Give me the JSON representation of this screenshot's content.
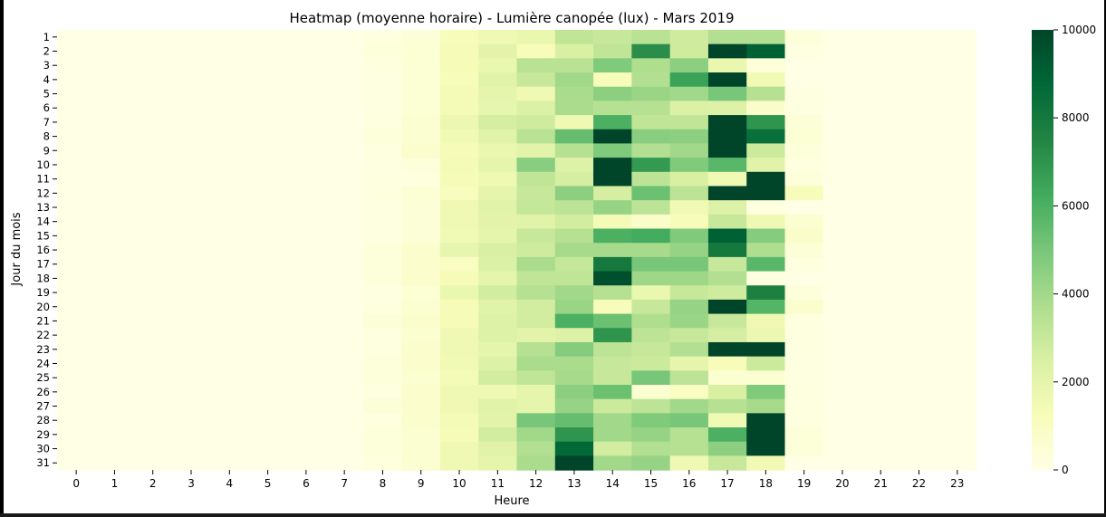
{
  "chart_data": {
    "type": "heatmap",
    "title": "Heatmap (moyenne horaire) - Lumière canopée (lux) - Mars 2019",
    "xlabel": "Heure",
    "ylabel": "Jour du mois",
    "x_categories": [
      "0",
      "1",
      "2",
      "3",
      "4",
      "5",
      "6",
      "7",
      "8",
      "9",
      "10",
      "11",
      "12",
      "13",
      "14",
      "15",
      "16",
      "17",
      "18",
      "19",
      "20",
      "21",
      "22",
      "23"
    ],
    "y_categories": [
      "1",
      "2",
      "3",
      "4",
      "5",
      "6",
      "7",
      "8",
      "9",
      "10",
      "11",
      "12",
      "13",
      "14",
      "15",
      "16",
      "17",
      "18",
      "19",
      "20",
      "21",
      "22",
      "23",
      "24",
      "25",
      "26",
      "27",
      "28",
      "29",
      "30",
      "31"
    ],
    "colormap": "YlGn",
    "vmin": 0,
    "vmax": 10000,
    "colorbar_ticks": [
      "0",
      "2000",
      "4000",
      "6000",
      "8000",
      "10000"
    ],
    "values": [
      [
        0,
        0,
        0,
        0,
        0,
        0,
        0,
        0,
        200,
        400,
        1200,
        1600,
        1800,
        3200,
        3000,
        3400,
        2800,
        3600,
        3600,
        300,
        0,
        0,
        0,
        0
      ],
      [
        0,
        0,
        0,
        0,
        0,
        0,
        0,
        0,
        300,
        500,
        1300,
        2100,
        1200,
        2500,
        3200,
        7200,
        2800,
        10000,
        9000,
        100,
        0,
        0,
        0,
        0
      ],
      [
        0,
        0,
        0,
        0,
        0,
        0,
        0,
        0,
        200,
        500,
        1300,
        1800,
        3400,
        3400,
        4800,
        3700,
        4500,
        1800,
        300,
        0,
        0,
        0,
        0,
        0
      ],
      [
        0,
        0,
        0,
        0,
        0,
        0,
        0,
        0,
        150,
        500,
        1200,
        2200,
        3000,
        4000,
        1200,
        3600,
        6500,
        10000,
        1500,
        0,
        0,
        0,
        0,
        0
      ],
      [
        0,
        0,
        0,
        0,
        0,
        0,
        0,
        0,
        150,
        500,
        1400,
        2000,
        1600,
        3800,
        4500,
        4200,
        4000,
        5000,
        3500,
        100,
        0,
        0,
        0,
        0
      ],
      [
        0,
        0,
        0,
        0,
        0,
        0,
        0,
        0,
        150,
        500,
        1400,
        1900,
        2400,
        3800,
        3500,
        3500,
        2400,
        2300,
        800,
        100,
        0,
        0,
        0,
        0
      ],
      [
        0,
        0,
        0,
        0,
        0,
        0,
        0,
        0,
        200,
        600,
        1700,
        2600,
        2800,
        1600,
        6000,
        3200,
        3200,
        10000,
        7000,
        400,
        0,
        0,
        0,
        0
      ],
      [
        0,
        0,
        0,
        0,
        0,
        0,
        0,
        0,
        300,
        600,
        1500,
        2200,
        3400,
        5400,
        10000,
        4600,
        4500,
        10000,
        8400,
        500,
        0,
        0,
        0,
        0
      ],
      [
        0,
        0,
        0,
        0,
        0,
        0,
        0,
        0,
        200,
        700,
        1300,
        1800,
        2100,
        3500,
        4800,
        3600,
        4000,
        10000,
        2900,
        300,
        0,
        0,
        0,
        0
      ],
      [
        0,
        0,
        0,
        0,
        0,
        0,
        0,
        0,
        100,
        300,
        1400,
        2000,
        4600,
        2300,
        10000,
        6800,
        4800,
        5700,
        2200,
        200,
        0,
        0,
        0,
        0
      ],
      [
        0,
        0,
        0,
        0,
        0,
        0,
        0,
        0,
        150,
        200,
        1300,
        1600,
        3200,
        2600,
        10000,
        3300,
        2500,
        1500,
        10000,
        300,
        0,
        0,
        0,
        0
      ],
      [
        0,
        0,
        0,
        0,
        0,
        0,
        0,
        0,
        200,
        500,
        1100,
        2000,
        3000,
        4500,
        2600,
        5300,
        3300,
        10000,
        10000,
        1200,
        0,
        0,
        0,
        0
      ],
      [
        0,
        0,
        0,
        0,
        0,
        0,
        0,
        0,
        150,
        400,
        1600,
        2200,
        3100,
        3300,
        4300,
        3300,
        1500,
        2300,
        200,
        0,
        0,
        0,
        0,
        0
      ],
      [
        0,
        0,
        0,
        0,
        0,
        0,
        0,
        0,
        150,
        400,
        1600,
        2100,
        2200,
        2700,
        1400,
        800,
        1200,
        3000,
        1600,
        600,
        0,
        0,
        0,
        0
      ],
      [
        0,
        0,
        0,
        0,
        0,
        0,
        0,
        0,
        150,
        400,
        1500,
        2000,
        3000,
        3500,
        6000,
        6200,
        4800,
        9000,
        4700,
        800,
        0,
        0,
        0,
        0
      ],
      [
        0,
        0,
        0,
        0,
        0,
        0,
        0,
        0,
        300,
        700,
        1900,
        2500,
        2800,
        3900,
        3900,
        3900,
        4300,
        8000,
        3700,
        400,
        0,
        0,
        0,
        0
      ],
      [
        0,
        0,
        0,
        0,
        0,
        0,
        0,
        0,
        300,
        700,
        1000,
        2400,
        3800,
        3100,
        8000,
        5000,
        5000,
        3000,
        5700,
        200,
        0,
        0,
        0,
        0
      ],
      [
        0,
        0,
        0,
        0,
        0,
        0,
        0,
        0,
        300,
        700,
        1300,
        2000,
        3200,
        3200,
        9600,
        4100,
        4100,
        3600,
        100,
        0,
        0,
        0,
        0,
        0
      ],
      [
        0,
        0,
        0,
        0,
        0,
        0,
        0,
        0,
        100,
        500,
        1800,
        2700,
        3500,
        4000,
        3500,
        1800,
        3000,
        2800,
        7700,
        300,
        0,
        0,
        0,
        0
      ],
      [
        0,
        0,
        0,
        0,
        0,
        0,
        0,
        0,
        200,
        600,
        1300,
        2200,
        2700,
        4200,
        1200,
        3000,
        4300,
        10000,
        5800,
        700,
        0,
        0,
        0,
        0
      ],
      [
        0,
        0,
        0,
        0,
        0,
        0,
        0,
        0,
        400,
        700,
        1300,
        2300,
        2700,
        6000,
        5300,
        3700,
        4200,
        3000,
        1600,
        200,
        0,
        0,
        0,
        0
      ],
      [
        0,
        0,
        0,
        0,
        0,
        0,
        0,
        0,
        200,
        600,
        1600,
        2300,
        2100,
        2300,
        7000,
        3300,
        3000,
        2600,
        1700,
        200,
        0,
        0,
        0,
        0
      ],
      [
        0,
        0,
        0,
        0,
        0,
        0,
        0,
        0,
        200,
        700,
        1600,
        2000,
        3500,
        4700,
        3300,
        3000,
        3600,
        10000,
        10000,
        100,
        0,
        0,
        0,
        0
      ],
      [
        0,
        0,
        0,
        0,
        0,
        0,
        0,
        0,
        300,
        700,
        1500,
        2300,
        3800,
        3800,
        3000,
        2900,
        2000,
        1200,
        2900,
        100,
        0,
        0,
        0,
        0
      ],
      [
        0,
        0,
        0,
        0,
        0,
        0,
        0,
        0,
        300,
        600,
        1400,
        2700,
        3200,
        3900,
        3000,
        5000,
        3300,
        600,
        600,
        100,
        0,
        0,
        0,
        0
      ],
      [
        0,
        0,
        0,
        0,
        0,
        0,
        0,
        0,
        200,
        700,
        1600,
        1600,
        2000,
        4500,
        5300,
        600,
        1000,
        2500,
        4800,
        200,
        0,
        0,
        0,
        0
      ],
      [
        0,
        0,
        0,
        0,
        0,
        0,
        0,
        0,
        400,
        700,
        1600,
        2200,
        2000,
        4300,
        2900,
        3300,
        4000,
        3500,
        3900,
        200,
        0,
        0,
        0,
        0
      ],
      [
        0,
        0,
        0,
        0,
        0,
        0,
        0,
        0,
        200,
        700,
        1400,
        2100,
        5000,
        5400,
        4000,
        4800,
        5000,
        1500,
        10000,
        200,
        0,
        0,
        0,
        0
      ],
      [
        0,
        0,
        0,
        0,
        0,
        0,
        0,
        0,
        300,
        600,
        1300,
        2700,
        4000,
        7000,
        4000,
        4300,
        3500,
        6000,
        10000,
        300,
        0,
        0,
        0,
        0
      ],
      [
        0,
        0,
        0,
        0,
        0,
        0,
        0,
        0,
        300,
        600,
        1600,
        2200,
        3600,
        8700,
        2700,
        3600,
        3500,
        4500,
        10000,
        400,
        0,
        0,
        0,
        0
      ],
      [
        0,
        0,
        0,
        0,
        0,
        0,
        0,
        0,
        200,
        600,
        1600,
        2000,
        3800,
        10000,
        4000,
        4300,
        1600,
        3000,
        1500,
        0,
        0,
        0,
        0,
        0
      ]
    ]
  }
}
